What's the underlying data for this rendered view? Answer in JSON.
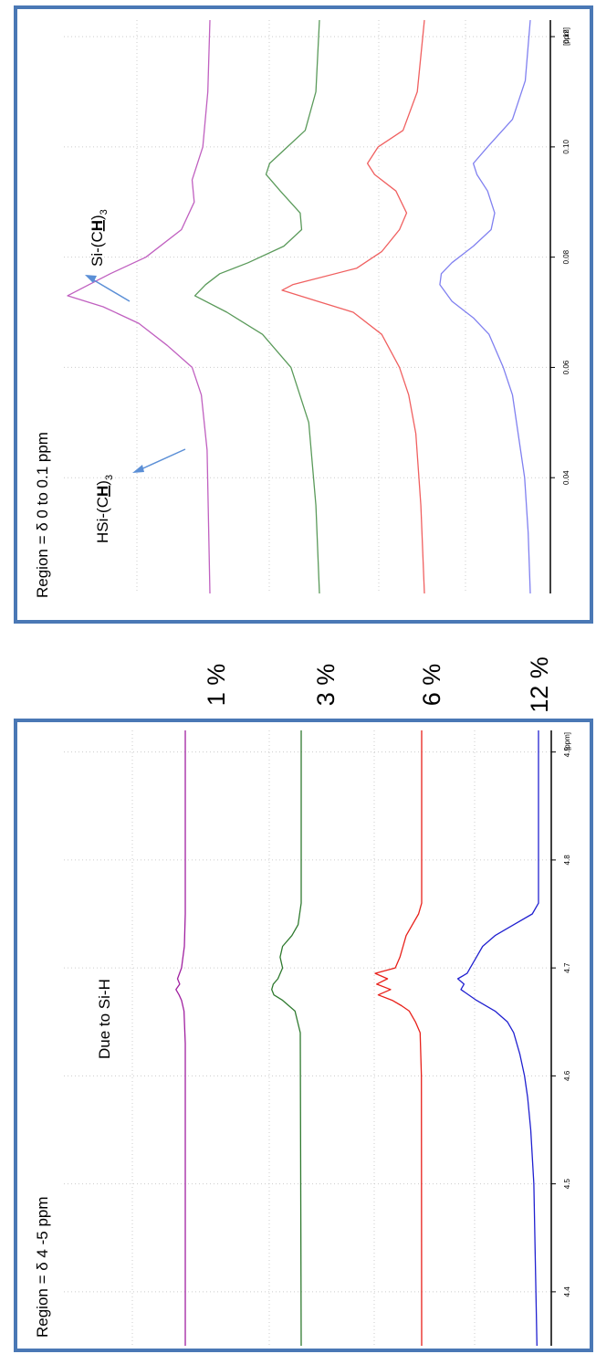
{
  "chart_data": [
    {
      "type": "line",
      "orientation": "rotated-90-ccw",
      "annotation_region": "Region = δ 4 -5 ppm",
      "annotation_peak": "Due to Si-H",
      "x_unit": "[ppm]",
      "x_ticks": [
        "4.4",
        "4.5",
        "4.6",
        "4.7",
        "4.8",
        "4.9"
      ],
      "xlim": [
        4.92,
        4.35
      ],
      "grid": true,
      "series": [
        {
          "name": "1 %",
          "color": "#a020a0",
          "x": [
            4.92,
            4.75,
            4.72,
            4.7,
            4.69,
            4.685,
            4.68,
            4.675,
            4.67,
            4.66,
            4.63,
            4.35
          ],
          "y": [
            0,
            0,
            0.3,
            1.2,
            2.5,
            1.8,
            3,
            2,
            1.2,
            0.4,
            0,
            0
          ]
        },
        {
          "name": "3 %",
          "color": "#2f7a2f",
          "x": [
            4.92,
            4.76,
            4.74,
            4.73,
            4.72,
            4.71,
            4.7,
            4.69,
            4.685,
            4.68,
            4.675,
            4.67,
            4.66,
            4.64,
            4.35
          ],
          "y": [
            0,
            0,
            1,
            3,
            6,
            6.8,
            6,
            7.5,
            9,
            9.5,
            8.8,
            6,
            2,
            0.3,
            0
          ]
        },
        {
          "name": "6 %",
          "color": "#e8201a",
          "x": [
            4.92,
            4.76,
            4.75,
            4.74,
            4.73,
            4.72,
            4.71,
            4.7,
            4.695,
            4.69,
            4.685,
            4.68,
            4.675,
            4.67,
            4.665,
            4.66,
            4.65,
            4.64,
            4.6,
            4.35
          ],
          "y": [
            0,
            0,
            1,
            3,
            5,
            6,
            7,
            8.5,
            15,
            11,
            14.5,
            10,
            14,
            9.5,
            6.5,
            4,
            2,
            0.5,
            0.1,
            0
          ]
        },
        {
          "name": "12 %",
          "color": "#2020d0",
          "x": [
            4.92,
            4.76,
            4.75,
            4.74,
            4.73,
            4.72,
            4.71,
            4.7,
            4.695,
            4.69,
            4.685,
            4.68,
            4.67,
            4.66,
            4.65,
            4.64,
            4.62,
            4.6,
            4.58,
            4.55,
            4.5,
            4.35
          ],
          "y": [
            0,
            0,
            2,
            8,
            14,
            18,
            20,
            22,
            23,
            26,
            24,
            25,
            20,
            14,
            10,
            8,
            6,
            4.5,
            3.5,
            2.5,
            1.5,
            0.5
          ]
        }
      ]
    },
    {
      "type": "line",
      "orientation": "rotated-90-ccw",
      "annotation_region": "Region = δ  0 to 0.1 ppm",
      "annotation_left_prefix": "HSi-(C",
      "annotation_left_bold": "H",
      "annotation_left_suffix": ")",
      "annotation_left_sub": "3",
      "annotation_right_prefix": "Si-(C",
      "annotation_right_bold": "H",
      "annotation_right_suffix": ")",
      "annotation_right_sub": "3",
      "x_unit": "[ppm]",
      "x_ticks": [
        "0.04",
        "0.06",
        "0.08",
        "0.10",
        "0.12"
      ],
      "xlim": [
        0.123,
        0.019
      ],
      "grid": true,
      "series": [
        {
          "name": "1 %",
          "color": "#c060c0",
          "x": [
            0.123,
            0.11,
            0.1,
            0.094,
            0.09,
            0.085,
            0.08,
            0.077,
            0.075,
            0.073,
            0.071,
            0.068,
            0.064,
            0.06,
            0.055,
            0.045,
            0.019
          ],
          "y": [
            0,
            0.3,
            1,
            2.5,
            2.2,
            4,
            9,
            14,
            17,
            20,
            15,
            10,
            6,
            2.5,
            1.2,
            0.4,
            0
          ]
        },
        {
          "name": "3 %",
          "color": "#5a9a5a",
          "x": [
            0.123,
            0.11,
            0.103,
            0.1,
            0.097,
            0.095,
            0.092,
            0.088,
            0.085,
            0.082,
            0.079,
            0.077,
            0.075,
            0.073,
            0.07,
            0.066,
            0.06,
            0.05,
            0.035,
            0.019
          ],
          "y": [
            0,
            0.5,
            2,
            4.5,
            7,
            7.5,
            5.5,
            2.7,
            2.5,
            5,
            10,
            14,
            16,
            17.5,
            13,
            8,
            4,
            1.5,
            0.5,
            0
          ]
        },
        {
          "name": "6 %",
          "color": "#f06060",
          "x": [
            0.123,
            0.11,
            0.103,
            0.1,
            0.097,
            0.095,
            0.092,
            0.088,
            0.085,
            0.081,
            0.078,
            0.075,
            0.074,
            0.072,
            0.07,
            0.066,
            0.06,
            0.055,
            0.048,
            0.035,
            0.019
          ],
          "y": [
            0,
            1,
            3,
            6.5,
            8,
            7,
            4,
            2.5,
            3.5,
            6,
            9.5,
            18.5,
            20,
            15,
            10,
            6,
            3.5,
            2.2,
            1.2,
            0.5,
            0
          ]
        },
        {
          "name": "12 %",
          "color": "#8080f0",
          "x": [
            0.123,
            0.112,
            0.105,
            0.1,
            0.097,
            0.095,
            0.092,
            0.088,
            0.085,
            0.082,
            0.079,
            0.077,
            0.075,
            0.072,
            0.069,
            0.066,
            0.06,
            0.055,
            0.048,
            0.04,
            0.03,
            0.019
          ],
          "y": [
            0,
            0.7,
            2.5,
            6,
            8,
            7.5,
            6,
            5,
            5.5,
            8,
            11,
            12.5,
            12.7,
            11,
            8,
            5.8,
            3.8,
            2.5,
            1.7,
            0.8,
            0.3,
            0
          ]
        }
      ]
    }
  ],
  "concentration_labels": [
    "1 %",
    "3 %",
    "6 %",
    "12 %"
  ]
}
